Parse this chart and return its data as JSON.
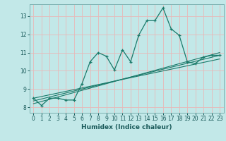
{
  "xlabel": "Humidex (Indice chaleur)",
  "bg_color": "#c2e8e8",
  "grid_color": "#e8b8b8",
  "line_color": "#1a7a6a",
  "xlim": [
    -0.5,
    23.5
  ],
  "ylim": [
    7.7,
    13.65
  ],
  "yticks": [
    8,
    9,
    10,
    11,
    12,
    13
  ],
  "xticks": [
    0,
    1,
    2,
    3,
    4,
    5,
    6,
    7,
    8,
    9,
    10,
    11,
    12,
    13,
    14,
    15,
    16,
    17,
    18,
    19,
    20,
    21,
    22,
    23
  ],
  "main_series": [
    [
      0,
      8.5
    ],
    [
      1,
      8.1
    ],
    [
      2,
      8.5
    ],
    [
      3,
      8.5
    ],
    [
      4,
      8.4
    ],
    [
      5,
      8.4
    ],
    [
      6,
      9.3
    ],
    [
      7,
      10.5
    ],
    [
      8,
      11.0
    ],
    [
      9,
      10.8
    ],
    [
      10,
      10.05
    ],
    [
      11,
      11.15
    ],
    [
      12,
      10.5
    ],
    [
      13,
      11.95
    ],
    [
      14,
      12.75
    ],
    [
      15,
      12.75
    ],
    [
      16,
      13.45
    ],
    [
      17,
      12.3
    ],
    [
      18,
      11.95
    ],
    [
      19,
      10.5
    ],
    [
      20,
      10.4
    ],
    [
      21,
      10.75
    ],
    [
      22,
      10.85
    ],
    [
      23,
      10.85
    ]
  ],
  "linear_series": [
    [
      [
        0,
        8.2
      ],
      [
        23,
        11.0
      ]
    ],
    [
      [
        0,
        8.35
      ],
      [
        23,
        10.85
      ]
    ],
    [
      [
        0,
        8.5
      ],
      [
        23,
        10.65
      ]
    ]
  ]
}
